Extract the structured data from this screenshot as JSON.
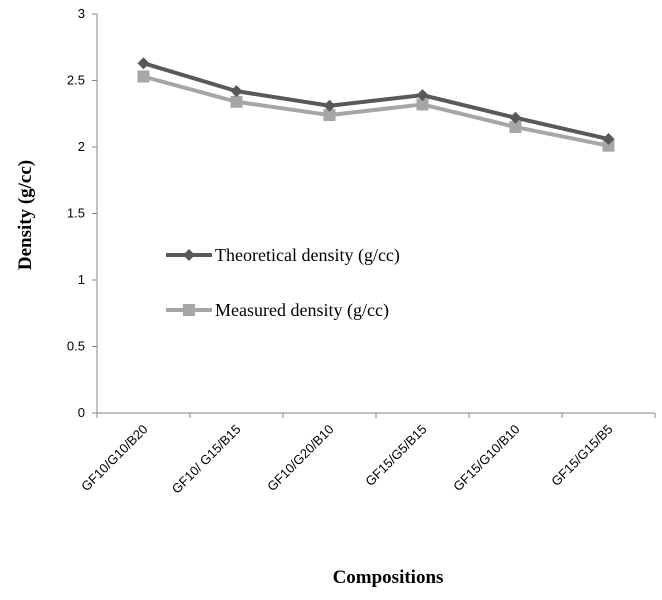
{
  "chart_data": {
    "type": "line",
    "title": "",
    "xlabel": "Compositions",
    "ylabel": "Density (g/cc)",
    "categories": [
      "GF10/G10/B20",
      "GF10/ G15/B15",
      "GF10/G20/B10",
      "GF15/G5/B15",
      "GF15/G10/B10",
      "GF15/G15/B5"
    ],
    "ylim": [
      0,
      3
    ],
    "yticks": [
      "0",
      "0.5",
      "1",
      "1.5",
      "2",
      "2.5",
      "3"
    ],
    "grid": false,
    "legend_position": "center-left",
    "series": [
      {
        "name": "Theoretical density (g/cc)",
        "values": [
          2.63,
          2.42,
          2.31,
          2.39,
          2.22,
          2.06
        ],
        "color": "#595959",
        "marker": "diamond"
      },
      {
        "name": "Measured density (g/cc)",
        "values": [
          2.53,
          2.34,
          2.24,
          2.32,
          2.15,
          2.01
        ],
        "color": "#a6a6a6",
        "marker": "square"
      }
    ]
  }
}
